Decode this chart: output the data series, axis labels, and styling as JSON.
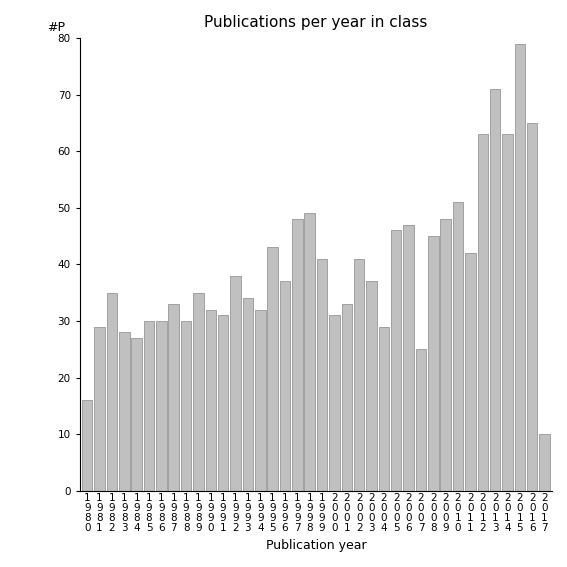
{
  "years": [
    "1980",
    "1981",
    "1982",
    "1983",
    "1984",
    "1985",
    "1986",
    "1987",
    "1988",
    "1989",
    "1990",
    "1991",
    "1992",
    "1993",
    "1994",
    "1995",
    "1996",
    "1997",
    "1998",
    "1999",
    "2000",
    "2001",
    "2002",
    "2003",
    "2004",
    "2005",
    "2006",
    "2007",
    "2008",
    "2009",
    "2010",
    "2011",
    "2012",
    "2013",
    "2014",
    "2015",
    "2016",
    "2017"
  ],
  "values": [
    16,
    29,
    35,
    28,
    27,
    30,
    30,
    33,
    30,
    35,
    32,
    31,
    38,
    34,
    32,
    43,
    37,
    48,
    49,
    41,
    31,
    33,
    41,
    37,
    29,
    46,
    47,
    25,
    45,
    48,
    51,
    42,
    63,
    71,
    63,
    79,
    65,
    10
  ],
  "bar_color": "#c0c0c0",
  "bar_edgecolor": "#888888",
  "title": "Publications per year in class",
  "xlabel": "Publication year",
  "ylabel": "#P",
  "ylim": [
    0,
    80
  ],
  "yticks": [
    0,
    10,
    20,
    30,
    40,
    50,
    60,
    70,
    80
  ],
  "background_color": "#ffffff",
  "title_fontsize": 11,
  "axis_label_fontsize": 9,
  "tick_fontsize": 7.5
}
